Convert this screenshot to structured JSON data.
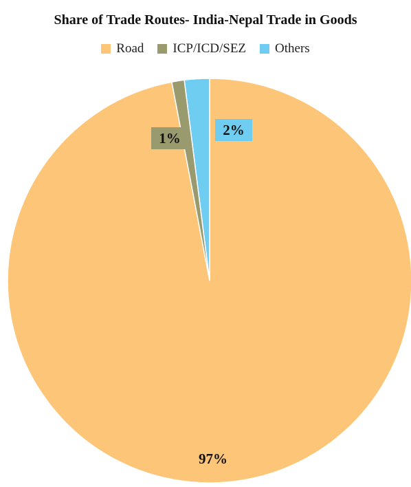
{
  "chart_data": {
    "type": "pie",
    "title": "Share of Trade Routes- India-Nepal Trade in Goods",
    "categories": [
      "Road",
      "ICP/ICD/SEZ",
      "Others"
    ],
    "values": [
      97,
      1,
      2
    ],
    "data_labels": [
      "97%",
      "1%",
      "2%"
    ],
    "colors": [
      "#FDC577",
      "#999A6E",
      "#6ECDF0"
    ],
    "legend_position": "top"
  }
}
